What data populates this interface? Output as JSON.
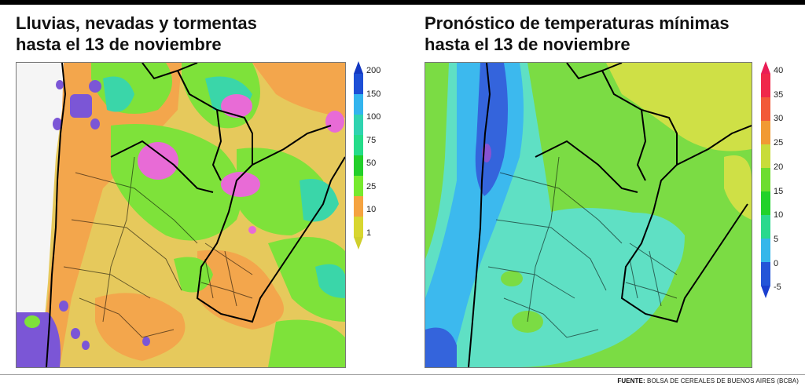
{
  "left_panel": {
    "title": "Lluvias, nevadas y tormentas\nhasta el 13 de noviembre",
    "legend": {
      "ticks": [
        "200",
        "150",
        "100",
        "75",
        "50",
        "25",
        "10",
        "1"
      ],
      "colors": [
        "#1d4fd6",
        "#33b4ee",
        "#2fd3b0",
        "#25dc8a",
        "#22cf2a",
        "#77ea2e",
        "#f5a340",
        "#d8d630"
      ],
      "cap_top_color": "#1338c2",
      "cap_bottom_color": "#d0cf2c"
    },
    "map_colors": {
      "base": "#e6c95c",
      "orange": "#f3a64c",
      "green": "#7ee23a",
      "aqua": "#3ad6a9",
      "magenta": "#e86bd6",
      "purple": "#7b56d6",
      "blue": "#3a8be6",
      "white": "#f5f5f5"
    }
  },
  "right_panel": {
    "title": "Pronóstico de temperaturas mínimas\nhasta el 13 de noviembre",
    "legend": {
      "ticks": [
        "40",
        "35",
        "30",
        "25",
        "20",
        "15",
        "10",
        "5",
        "0",
        "-5"
      ],
      "colors": [
        "#f0284a",
        "#f25a38",
        "#f19a33",
        "#c8dc3a",
        "#6ddd2f",
        "#21d22a",
        "#2ad98d",
        "#35b7ea",
        "#2455d8"
      ],
      "cap_top_color": "#ea1d55",
      "cap_bottom_color": "#1a3fcf"
    },
    "map_colors": {
      "base": "#7bdc44",
      "aqua": "#5fe0c4",
      "lightblue": "#3cb9ee",
      "blue": "#3464dc",
      "purple": "#8852d1",
      "yellow": "#cfe046"
    }
  },
  "footer": {
    "source_label": "FUENTE:",
    "source_text": " BOLSA DE CEREALES DE BUENOS AIRES (BCBA)"
  }
}
